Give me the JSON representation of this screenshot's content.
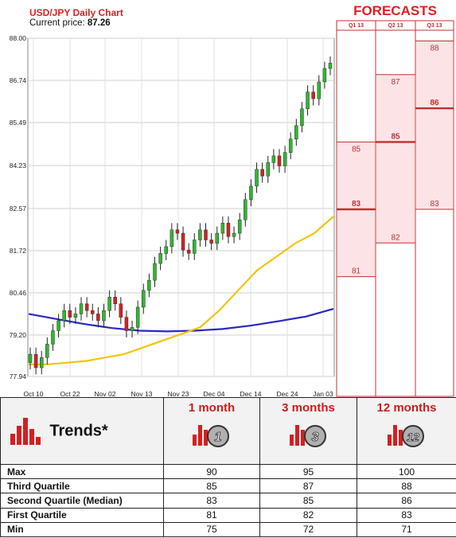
{
  "header": {
    "title": "USD/JPY Daily Chart",
    "price_label": "Current price:",
    "price_value": "87.26"
  },
  "forecasts": {
    "title": "FORECASTS",
    "columns": [
      "Q1 13",
      "Q2 13",
      "Q3 13"
    ],
    "ranges": [
      {
        "quarter": "Q1 13",
        "min": 81,
        "median": 83,
        "max": 85
      },
      {
        "quarter": "Q2 13",
        "min": 82,
        "median": 85,
        "max": 87
      },
      {
        "quarter": "Q3 13",
        "min": 83,
        "median": 86,
        "max": 88
      }
    ]
  },
  "colors": {
    "accent_red": "#e02020",
    "forecast_fill": "#fce4e6",
    "candle_up": "#2eb82e",
    "candle_down": "#d42020",
    "ma_short": "#f2c40c",
    "ma_long": "#2828c0"
  },
  "chart_data": {
    "type": "candlestick",
    "title": "USD/JPY Daily Chart",
    "y_ticks": [
      "88.00",
      "86.74",
      "85.49",
      "84.23",
      "82.57",
      "81.72",
      "80.46",
      "79.20",
      "77.94"
    ],
    "x_ticks": [
      "Oct 10",
      "Oct 22",
      "Nov 02",
      "Nov 13",
      "Nov 23",
      "Dec 04",
      "Dec 14",
      "Dec 24",
      "Jan 03"
    ],
    "ylim": [
      77.94,
      88.0
    ],
    "grid": true,
    "close_series": [
      78.6,
      78.2,
      78.5,
      78.9,
      79.3,
      79.6,
      79.9,
      79.7,
      79.8,
      80.1,
      79.9,
      79.8,
      79.6,
      79.9,
      80.3,
      80.1,
      79.7,
      79.3,
      79.4,
      80.0,
      80.5,
      80.8,
      81.3,
      81.6,
      81.8,
      82.3,
      82.2,
      81.7,
      81.6,
      82.0,
      82.3,
      82.0,
      81.9,
      82.2,
      82.5,
      82.1,
      82.2,
      82.6,
      83.2,
      83.6,
      84.1,
      83.9,
      84.3,
      84.5,
      84.2,
      84.6,
      85.0,
      85.4,
      85.9,
      86.4,
      86.2,
      86.7,
      87.1,
      87.26
    ],
    "series": [
      {
        "name": "short moving average",
        "values": [
          78.3,
          78.3,
          78.35,
          78.4,
          78.5,
          78.6,
          78.8,
          79.0,
          79.2,
          79.4,
          79.9,
          80.5,
          81.1,
          81.5,
          81.9,
          82.2,
          82.7
        ]
      },
      {
        "name": "long moving average",
        "values": [
          79.8,
          79.65,
          79.5,
          79.38,
          79.3,
          79.28,
          79.3,
          79.35,
          79.45,
          79.58,
          79.72,
          79.95
        ]
      }
    ]
  },
  "trends": {
    "title": "Trends*",
    "columns": [
      {
        "label": "1 month",
        "badge": "1"
      },
      {
        "label": "3 months",
        "badge": "3"
      },
      {
        "label": "12 months",
        "badge": "12"
      }
    ],
    "rows": [
      {
        "label": "Max",
        "values": [
          "90",
          "95",
          "100"
        ]
      },
      {
        "label": "Third Quartile",
        "values": [
          "85",
          "87",
          "88"
        ]
      },
      {
        "label": "Second Quartile (Median)",
        "values": [
          "83",
          "85",
          "86"
        ]
      },
      {
        "label": "First Quartile",
        "values": [
          "81",
          "82",
          "83"
        ]
      },
      {
        "label": "Min",
        "values": [
          "75",
          "72",
          "71"
        ]
      }
    ]
  }
}
